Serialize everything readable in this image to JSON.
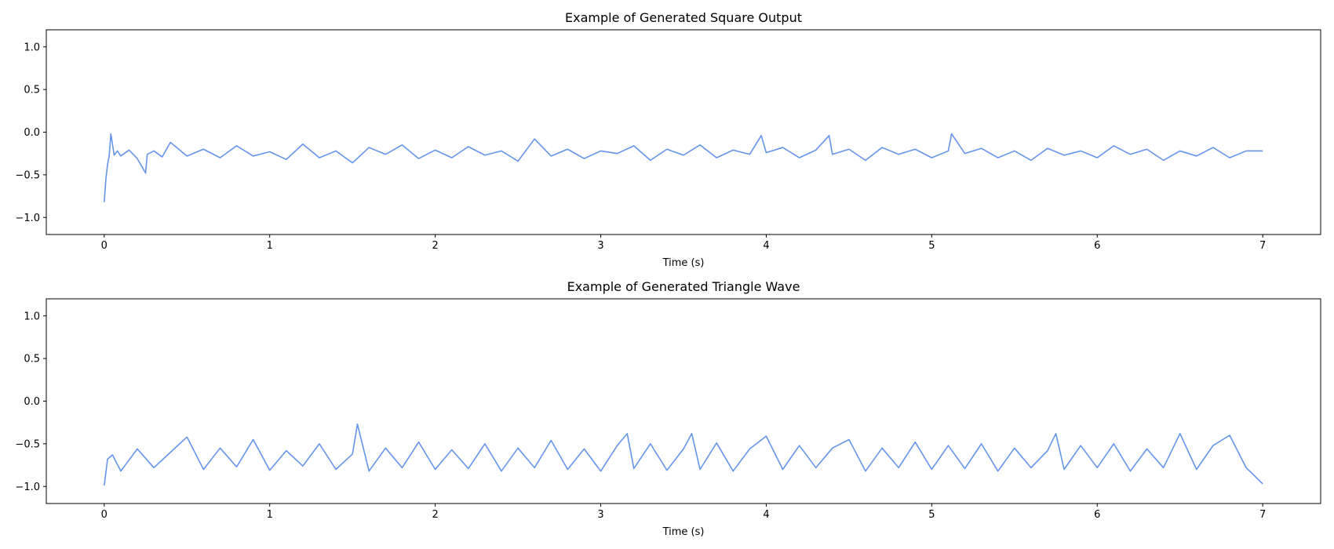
{
  "colors": {
    "line": "#6495ED",
    "axes": "#000000",
    "background": "#ffffff"
  },
  "chart_data": [
    {
      "type": "line",
      "title": "Example of Generated Square Output",
      "xlabel": "Time (s)",
      "ylabel": "",
      "xlim": [
        -0.35,
        7.35
      ],
      "ylim": [
        -1.2,
        1.2
      ],
      "xticks": [
        0,
        1,
        2,
        3,
        4,
        5,
        6,
        7
      ],
      "xtick_labels": [
        "0",
        "1",
        "2",
        "3",
        "4",
        "5",
        "6",
        "7"
      ],
      "yticks": [
        -1.0,
        -0.5,
        0.0,
        0.5,
        1.0
      ],
      "ytick_labels": [
        "−1.0",
        "−0.5",
        "0.0",
        "0.5",
        "1.0"
      ],
      "grid": false,
      "series": [
        {
          "x": [
            0.0,
            0.01,
            0.02,
            0.03,
            0.04,
            0.06,
            0.08,
            0.1,
            0.15,
            0.2,
            0.25,
            0.26,
            0.3,
            0.35,
            0.4,
            0.5,
            0.6,
            0.7,
            0.8,
            0.9,
            1.0,
            1.1,
            1.2,
            1.3,
            1.4,
            1.5,
            1.6,
            1.7,
            1.8,
            1.9,
            2.0,
            2.1,
            2.2,
            2.3,
            2.4,
            2.5,
            2.6,
            2.7,
            2.8,
            2.9,
            3.0,
            3.1,
            3.2,
            3.3,
            3.4,
            3.5,
            3.6,
            3.7,
            3.8,
            3.9,
            3.97,
            4.0,
            4.1,
            4.2,
            4.3,
            4.38,
            4.4,
            4.5,
            4.6,
            4.7,
            4.8,
            4.9,
            5.0,
            5.1,
            5.12,
            5.2,
            5.3,
            5.4,
            5.5,
            5.6,
            5.7,
            5.8,
            5.9,
            6.0,
            6.1,
            6.2,
            6.3,
            6.4,
            6.5,
            6.6,
            6.7,
            6.8,
            6.9,
            7.0
          ],
          "y": [
            -0.82,
            -0.55,
            -0.38,
            -0.28,
            -0.02,
            -0.27,
            -0.22,
            -0.28,
            -0.21,
            -0.31,
            -0.48,
            -0.26,
            -0.22,
            -0.29,
            -0.12,
            -0.28,
            -0.2,
            -0.3,
            -0.16,
            -0.28,
            -0.23,
            -0.32,
            -0.14,
            -0.3,
            -0.22,
            -0.36,
            -0.18,
            -0.26,
            -0.15,
            -0.31,
            -0.21,
            -0.3,
            -0.17,
            -0.27,
            -0.22,
            -0.34,
            -0.08,
            -0.28,
            -0.2,
            -0.31,
            -0.22,
            -0.25,
            -0.16,
            -0.33,
            -0.2,
            -0.27,
            -0.15,
            -0.3,
            -0.21,
            -0.26,
            -0.04,
            -0.24,
            -0.18,
            -0.3,
            -0.21,
            -0.04,
            -0.26,
            -0.2,
            -0.33,
            -0.18,
            -0.26,
            -0.2,
            -0.3,
            -0.22,
            -0.02,
            -0.25,
            -0.19,
            -0.3,
            -0.22,
            -0.33,
            -0.19,
            -0.27,
            -0.22,
            -0.3,
            -0.16,
            -0.26,
            -0.2,
            -0.33,
            -0.22,
            -0.28,
            -0.18,
            -0.3,
            -0.22,
            -0.22
          ]
        }
      ]
    },
    {
      "type": "line",
      "title": "Example of Generated Triangle Wave",
      "xlabel": "Time (s)",
      "ylabel": "",
      "xlim": [
        -0.35,
        7.35
      ],
      "ylim": [
        -1.2,
        1.2
      ],
      "xticks": [
        0,
        1,
        2,
        3,
        4,
        5,
        6,
        7
      ],
      "xtick_labels": [
        "0",
        "1",
        "2",
        "3",
        "4",
        "5",
        "6",
        "7"
      ],
      "yticks": [
        -1.0,
        -0.5,
        0.0,
        0.5,
        1.0
      ],
      "ytick_labels": [
        "−1.0",
        "−0.5",
        "0.0",
        "0.5",
        "1.0"
      ],
      "grid": false,
      "series": [
        {
          "x": [
            0.0,
            0.02,
            0.05,
            0.1,
            0.2,
            0.3,
            0.4,
            0.5,
            0.6,
            0.7,
            0.8,
            0.9,
            1.0,
            1.1,
            1.2,
            1.3,
            1.4,
            1.5,
            1.53,
            1.6,
            1.7,
            1.8,
            1.9,
            2.0,
            2.1,
            2.2,
            2.3,
            2.4,
            2.5,
            2.6,
            2.7,
            2.8,
            2.9,
            3.0,
            3.1,
            3.16,
            3.2,
            3.3,
            3.4,
            3.5,
            3.55,
            3.6,
            3.7,
            3.8,
            3.9,
            4.0,
            4.1,
            4.2,
            4.3,
            4.4,
            4.5,
            4.6,
            4.7,
            4.8,
            4.9,
            5.0,
            5.1,
            5.2,
            5.3,
            5.4,
            5.5,
            5.6,
            5.7,
            5.75,
            5.8,
            5.9,
            6.0,
            6.1,
            6.2,
            6.3,
            6.4,
            6.5,
            6.6,
            6.7,
            6.8,
            6.9,
            7.0
          ],
          "y": [
            -0.99,
            -0.68,
            -0.63,
            -0.82,
            -0.56,
            -0.78,
            -0.6,
            -0.42,
            -0.8,
            -0.55,
            -0.77,
            -0.45,
            -0.81,
            -0.58,
            -0.76,
            -0.5,
            -0.8,
            -0.62,
            -0.27,
            -0.82,
            -0.55,
            -0.78,
            -0.48,
            -0.8,
            -0.57,
            -0.79,
            -0.5,
            -0.82,
            -0.55,
            -0.78,
            -0.46,
            -0.8,
            -0.56,
            -0.82,
            -0.52,
            -0.38,
            -0.79,
            -0.5,
            -0.81,
            -0.56,
            -0.38,
            -0.8,
            -0.49,
            -0.82,
            -0.56,
            -0.41,
            -0.8,
            -0.52,
            -0.78,
            -0.55,
            -0.45,
            -0.82,
            -0.55,
            -0.78,
            -0.48,
            -0.8,
            -0.52,
            -0.79,
            -0.5,
            -0.82,
            -0.55,
            -0.78,
            -0.58,
            -0.38,
            -0.8,
            -0.52,
            -0.78,
            -0.5,
            -0.82,
            -0.56,
            -0.78,
            -0.38,
            -0.8,
            -0.52,
            -0.4,
            -0.78,
            -0.97
          ]
        }
      ]
    }
  ]
}
